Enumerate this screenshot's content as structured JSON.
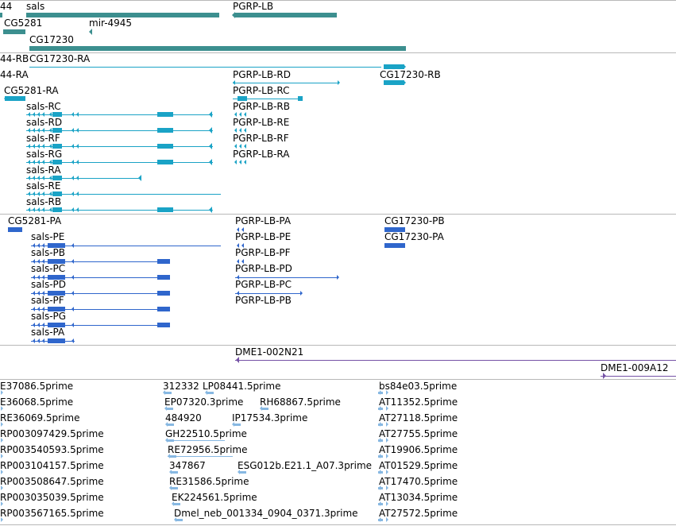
{
  "colors": {
    "gene": "#3c8f8f",
    "transcript_rna": "#1aa3c6",
    "protein": "#2f66cc",
    "clone": "#7552a6",
    "est": "#87b8e2",
    "separator": "#b8b8b8"
  },
  "tracks": {
    "genes": {
      "labels": [
        {
          "id": "gene-44",
          "text": "44"
        },
        {
          "id": "gene-sals",
          "text": "sals"
        },
        {
          "id": "gene-pgrp-lb",
          "text": "PGRP-LB"
        },
        {
          "id": "gene-cg5281",
          "text": "CG5281"
        },
        {
          "id": "gene-mir-4945",
          "text": "mir-4945"
        },
        {
          "id": "gene-cg17230",
          "text": "CG17230"
        }
      ]
    },
    "transcripts": {
      "labels": [
        {
          "id": "tx-44-rb",
          "text": "44-RB"
        },
        {
          "id": "tx-cg17230-ra",
          "text": "CG17230-RA"
        },
        {
          "id": "tx-44-ra",
          "text": "44-RA"
        },
        {
          "id": "tx-pgrp-lb-rd",
          "text": "PGRP-LB-RD"
        },
        {
          "id": "tx-cg17230-rb",
          "text": "CG17230-RB"
        },
        {
          "id": "tx-cg5281-ra",
          "text": "CG5281-RA"
        },
        {
          "id": "tx-pgrp-lb-rc",
          "text": "PGRP-LB-RC"
        },
        {
          "id": "tx-sals-rc",
          "text": "sals-RC"
        },
        {
          "id": "tx-pgrp-lb-rb",
          "text": "PGRP-LB-RB"
        },
        {
          "id": "tx-sals-rd",
          "text": "sals-RD"
        },
        {
          "id": "tx-pgrp-lb-re",
          "text": "PGRP-LB-RE"
        },
        {
          "id": "tx-sals-rf",
          "text": "sals-RF"
        },
        {
          "id": "tx-pgrp-lb-rf",
          "text": "PGRP-LB-RF"
        },
        {
          "id": "tx-sals-rg",
          "text": "sals-RG"
        },
        {
          "id": "tx-pgrp-lb-ra",
          "text": "PGRP-LB-RA"
        },
        {
          "id": "tx-sals-ra",
          "text": "sals-RA"
        },
        {
          "id": "tx-sals-re",
          "text": "sals-RE"
        },
        {
          "id": "tx-sals-rb",
          "text": "sals-RB"
        }
      ]
    },
    "proteins": {
      "labels": [
        {
          "id": "pp-cg5281-pa",
          "text": "CG5281-PA"
        },
        {
          "id": "pp-pgrp-lb-pa",
          "text": "PGRP-LB-PA"
        },
        {
          "id": "pp-cg17230-pb",
          "text": "CG17230-PB"
        },
        {
          "id": "pp-sals-pe",
          "text": "sals-PE"
        },
        {
          "id": "pp-pgrp-lb-pe",
          "text": "PGRP-LB-PE"
        },
        {
          "id": "pp-cg17230-pa",
          "text": "CG17230-PA"
        },
        {
          "id": "pp-sals-pb",
          "text": "sals-PB"
        },
        {
          "id": "pp-pgrp-lb-pf",
          "text": "PGRP-LB-PF"
        },
        {
          "id": "pp-sals-pc",
          "text": "sals-PC"
        },
        {
          "id": "pp-pgrp-lb-pd",
          "text": "PGRP-LB-PD"
        },
        {
          "id": "pp-sals-pd",
          "text": "sals-PD"
        },
        {
          "id": "pp-pgrp-lb-pc",
          "text": "PGRP-LB-PC"
        },
        {
          "id": "pp-sals-pf",
          "text": "sals-PF"
        },
        {
          "id": "pp-pgrp-lb-pb",
          "text": "PGRP-LB-PB"
        },
        {
          "id": "pp-sals-pg",
          "text": "sals-PG"
        },
        {
          "id": "pp-sals-pa",
          "text": "sals-PA"
        }
      ]
    },
    "clones": {
      "labels": [
        {
          "id": "clone-dme1-002n21",
          "text": "DME1-002N21"
        },
        {
          "id": "clone-dme1-009a12",
          "text": "DME1-009A12"
        }
      ]
    },
    "ests": {
      "labels": [
        {
          "id": "est-1",
          "text": "E37086.5prime"
        },
        {
          "id": "est-2",
          "text": "312332"
        },
        {
          "id": "est-3",
          "text": "LP08441.5prime"
        },
        {
          "id": "est-4",
          "text": "bs84e03.5prime"
        },
        {
          "id": "est-5",
          "text": "E36068.5prime"
        },
        {
          "id": "est-6",
          "text": "EP07320.3prime"
        },
        {
          "id": "est-7",
          "text": "RH68867.5prime"
        },
        {
          "id": "est-8",
          "text": "AT11352.5prime"
        },
        {
          "id": "est-9",
          "text": "RE36069.5prime"
        },
        {
          "id": "est-10",
          "text": "484920"
        },
        {
          "id": "est-11",
          "text": "IP17534.3prime"
        },
        {
          "id": "est-12",
          "text": "AT27118.5prime"
        },
        {
          "id": "est-13",
          "text": "RP003097429.5prime"
        },
        {
          "id": "est-14",
          "text": "GH22510.5prime"
        },
        {
          "id": "est-15",
          "text": "AT27755.5prime"
        },
        {
          "id": "est-16",
          "text": "RP003540593.5prime"
        },
        {
          "id": "est-17",
          "text": "RE72956.5prime"
        },
        {
          "id": "est-18",
          "text": "AT19906.5prime"
        },
        {
          "id": "est-19",
          "text": "RP003104157.5prime"
        },
        {
          "id": "est-20",
          "text": "347867"
        },
        {
          "id": "est-21",
          "text": "ESG012b.E21.1_A07.3prime"
        },
        {
          "id": "est-22",
          "text": "AT01529.5prime"
        },
        {
          "id": "est-23",
          "text": "RP003508647.5prime"
        },
        {
          "id": "est-24",
          "text": "RE31586.5prime"
        },
        {
          "id": "est-25",
          "text": "AT17470.5prime"
        },
        {
          "id": "est-26",
          "text": "RP003035039.5prime"
        },
        {
          "id": "est-27",
          "text": "EK224561.5prime"
        },
        {
          "id": "est-28",
          "text": "AT13034.5prime"
        },
        {
          "id": "est-29",
          "text": "RP003567165.5prime"
        },
        {
          "id": "est-30",
          "text": "Dmel_neb_001334_0904_0371.3prime"
        },
        {
          "id": "est-31",
          "text": "AT27572.5prime"
        }
      ]
    }
  }
}
